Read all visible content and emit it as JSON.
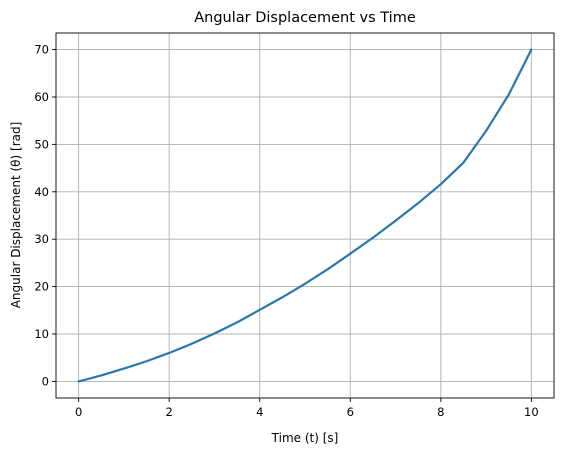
{
  "chart_data": {
    "type": "line",
    "title": "Angular Displacement vs Time",
    "xlabel": "Time (t) [s]",
    "ylabel": "Angular Displacement (θ) [rad]",
    "xlim": [
      -0.5,
      10.5
    ],
    "ylim": [
      -3.5,
      73.5
    ],
    "xticks": [
      0,
      2,
      4,
      6,
      8,
      10
    ],
    "yticks": [
      0,
      10,
      20,
      30,
      40,
      50,
      60,
      70
    ],
    "grid": true,
    "series": [
      {
        "color": "#2a77ab",
        "x": [
          0,
          0.5,
          1,
          1.5,
          2,
          2.5,
          3,
          3.5,
          4,
          4.5,
          5,
          5.5,
          6,
          6.5,
          7,
          7.5,
          8,
          8.5,
          9,
          9.5,
          10
        ],
        "y": [
          0,
          1.25,
          2.7,
          4.25,
          6,
          7.95,
          10.1,
          12.45,
          15.1,
          17.75,
          20.6,
          23.65,
          26.95,
          30.3,
          33.9,
          37.6,
          41.6,
          46.15,
          52.85,
          60.5,
          70
        ]
      }
    ]
  }
}
